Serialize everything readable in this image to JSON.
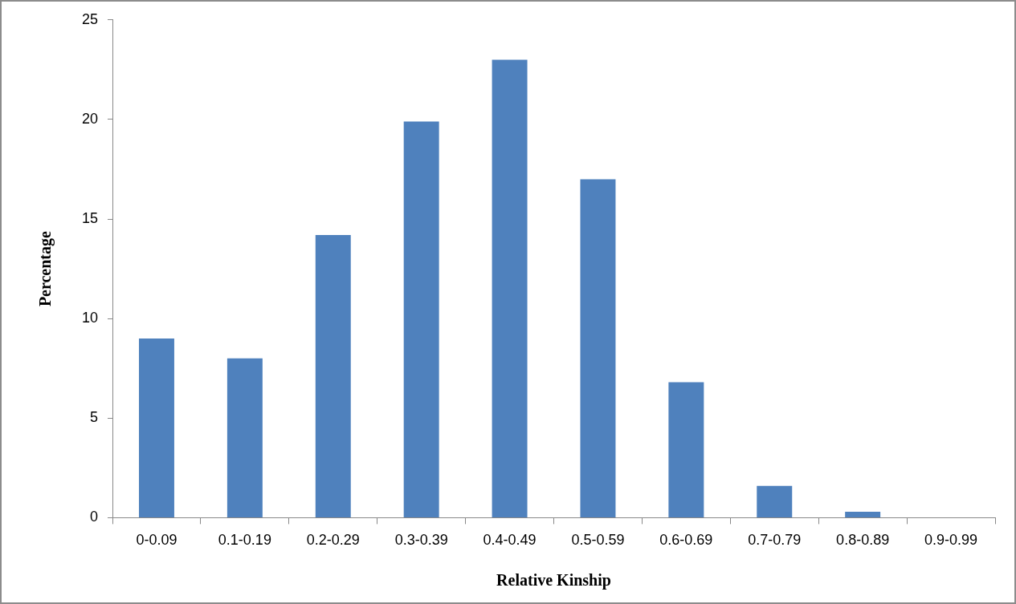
{
  "chart_data": {
    "type": "bar",
    "xlabel": "Relative Kinship",
    "ylabel": "Percentage",
    "categories": [
      "0-0.09",
      "0.1-0.19",
      "0.2-0.29",
      "0.3-0.39",
      "0.4-0.49",
      "0.5-0.59",
      "0.6-0.69",
      "0.7-0.79",
      "0.8-0.89",
      "0.9-0.99"
    ],
    "values": [
      9,
      8,
      14.2,
      19.9,
      23,
      17,
      6.8,
      1.6,
      0.3,
      0
    ],
    "color": "#4f81bd",
    "ylim": [
      0,
      25
    ],
    "yticks": [
      0,
      5,
      10,
      15,
      20,
      25
    ],
    "grid": false,
    "legend": false
  }
}
